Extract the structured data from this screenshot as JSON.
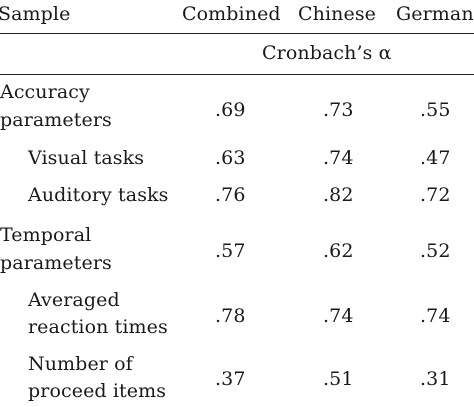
{
  "table": {
    "header": {
      "sample": "Sample",
      "columns": [
        "Combined",
        "Chinese",
        "German"
      ],
      "measure": "Cronbach’s α"
    },
    "rows": [
      {
        "label": [
          "Accuracy",
          "parameters"
        ],
        "indent": false,
        "values": [
          ".69",
          ".73",
          ".55"
        ]
      },
      {
        "label": [
          "Visual tasks"
        ],
        "indent": true,
        "values": [
          ".63",
          ".74",
          ".47"
        ]
      },
      {
        "label": [
          "Auditory tasks"
        ],
        "indent": true,
        "values": [
          ".76",
          ".82",
          ".72"
        ]
      },
      {
        "label": [
          "Temporal",
          "parameters"
        ],
        "indent": false,
        "values": [
          ".57",
          ".62",
          ".52"
        ]
      },
      {
        "label": [
          "Averaged",
          "reaction times"
        ],
        "indent": true,
        "values": [
          ".78",
          ".74",
          ".74"
        ]
      },
      {
        "label": [
          "Number of",
          "proceed items"
        ],
        "indent": true,
        "values": [
          ".37",
          ".51",
          ".31"
        ]
      }
    ]
  }
}
